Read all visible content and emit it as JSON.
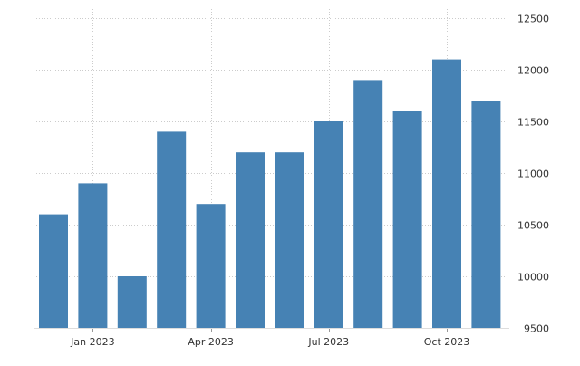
{
  "chart_data": {
    "type": "bar",
    "title": "",
    "xlabel": "",
    "ylabel": "",
    "categories": [
      "2022-12",
      "2023-01",
      "2023-02",
      "2023-03",
      "2023-04",
      "2023-05",
      "2023-06",
      "2023-07",
      "2023-08",
      "2023-09",
      "2023-10",
      "2023-11"
    ],
    "values": [
      10600,
      10900,
      10000,
      11400,
      10700,
      11200,
      11200,
      11500,
      11900,
      11600,
      12100,
      11700
    ],
    "ylim": [
      9500,
      12500
    ],
    "yticks": [
      9500,
      10000,
      10500,
      11000,
      11500,
      12000,
      12500
    ],
    "xtick_labels": [
      {
        "category": "2023-01",
        "label": "Jan 2023"
      },
      {
        "category": "2023-04",
        "label": "Apr 2023"
      },
      {
        "category": "2023-07",
        "label": "Jul 2023"
      },
      {
        "category": "2023-10",
        "label": "Oct 2023"
      }
    ],
    "y_axis_side": "right",
    "grid": true,
    "legend": "none",
    "colors": {
      "bar": "#4682b4",
      "grid": "#cccccc",
      "text": "#333333"
    }
  }
}
